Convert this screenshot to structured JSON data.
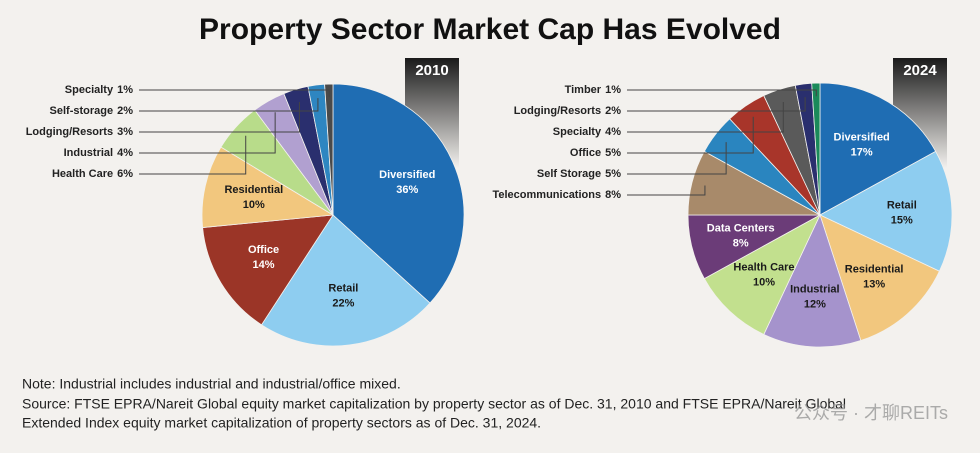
{
  "title": "Property Sector Market Cap Has Evolved",
  "chart_data": [
    {
      "type": "pie",
      "label": "2010",
      "categories": [
        "Diversified",
        "Retail",
        "Office",
        "Residential",
        "Health Care",
        "Industrial",
        "Lodging/Resorts",
        "Self-storage",
        "Specialty"
      ],
      "values": [
        36,
        22,
        14,
        10,
        6,
        4,
        3,
        2,
        1
      ],
      "value_labels": [
        "36%",
        "22%",
        "14%",
        "10%",
        "6%",
        "4%",
        "3%",
        "2%",
        "1%"
      ],
      "colors": [
        "#1f6db3",
        "#8ecdf0",
        "#9b3527",
        "#f2c77e",
        "#b8dc8a",
        "#b1a0d0",
        "#2a2f6e",
        "#2e86c1",
        "#4a4a4a"
      ]
    },
    {
      "type": "pie",
      "label": "2024",
      "categories": [
        "Diversified",
        "Retail",
        "Residential",
        "Industrial",
        "Health Care",
        "Data Centers",
        "Telecommunications",
        "Self Storage",
        "Office",
        "Specialty",
        "Lodging/Resorts",
        "Timber"
      ],
      "values": [
        17,
        15,
        13,
        12,
        10,
        8,
        8,
        5,
        5,
        4,
        2,
        1
      ],
      "value_labels": [
        "17%",
        "15%",
        "13%",
        "12%",
        "10%",
        "8%",
        "8%",
        "5%",
        "5%",
        "4%",
        "2%",
        "1%"
      ],
      "colors": [
        "#1f6db3",
        "#8ecdf0",
        "#f2c77e",
        "#a593cc",
        "#c2e08e",
        "#6b3c78",
        "#a88a6a",
        "#2a85bf",
        "#a8352a",
        "#5a5a5a",
        "#2a2f6e",
        "#1a8a5a"
      ]
    }
  ],
  "notes": [
    "Note: Industrial includes industrial and industrial/office mixed.",
    "Source: FTSE EPRA/Nareit Global equity market capitalization by property sector as of Dec. 31, 2010 and FTSE EPRA/Nareit Global",
    "Extended Index equity market capitalization of property sectors as of Dec. 31, 2024."
  ],
  "watermark": "公众号 · 才聊REITs"
}
